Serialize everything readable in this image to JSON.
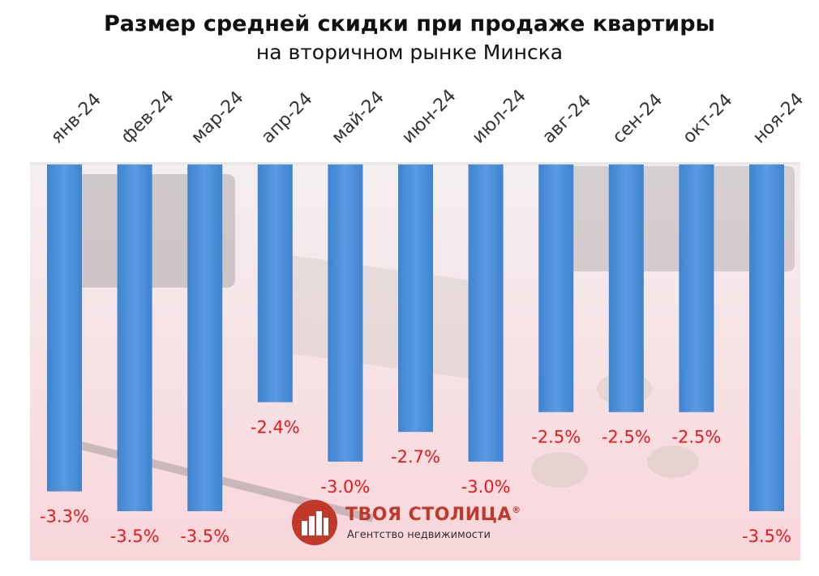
{
  "chart_data": {
    "type": "bar",
    "title": "Размер средней скидки при продаже квартиры",
    "subtitle": "на вторичном рынке Минска",
    "categories": [
      "янв-24",
      "фев-24",
      "мар-24",
      "апр-24",
      "май-24",
      "июн-24",
      "июл-24",
      "авг-24",
      "сен-24",
      "окт-24",
      "ноя-24"
    ],
    "values": [
      -3.3,
      -3.5,
      -3.5,
      -2.4,
      -3.0,
      -2.7,
      -3.0,
      -2.5,
      -2.5,
      -2.5,
      -3.5
    ],
    "value_labels": [
      "-3.3%",
      "-3.5%",
      "-3.5%",
      "-2.4%",
      "-3.0%",
      "-2.7%",
      "-3.0%",
      "-2.5%",
      "-2.5%",
      "-2.5%",
      "-3.5%"
    ],
    "ylim": [
      -3.5,
      0
    ],
    "grid": false,
    "legend": "none",
    "colors": {
      "bar": "#4a8fd8",
      "label": "#e8191e",
      "background": "#f7dcdf"
    }
  },
  "logo": {
    "name": "ТВОЯ СТОЛИЦА",
    "registered": "®",
    "tagline": "Агентство недвижимости",
    "color": "#c0392b"
  }
}
